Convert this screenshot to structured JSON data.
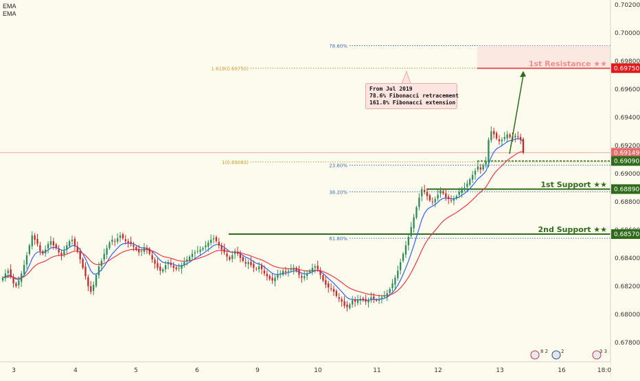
{
  "indicators": [
    "EMA",
    "EMA"
  ],
  "colors": {
    "background": "#fdfbee",
    "candle_up": "#2e8b57",
    "candle_down": "#c62828",
    "ema_fast": "#2962ff",
    "ema_slow": "#f23645",
    "fib": "#d19a2a",
    "retr": "#3b6fb6",
    "support": "#2e6b1a",
    "resistance": "#e11b1b",
    "current_price": "#e26d6d"
  },
  "callout": {
    "lines": [
      "From Jul 2019",
      "78.6% Fibonacci retracement",
      "161.8% Fibonacci extension"
    ]
  },
  "chart_data": {
    "type": "candlestick",
    "x_ticks": [
      "3",
      "4",
      "5",
      "6",
      "9",
      "10",
      "11",
      "12",
      "13",
      "16",
      "18:0"
    ],
    "y_ticks": [
      "0.70200",
      "0.70000",
      "0.69800",
      "0.69600",
      "0.69400",
      "0.69200",
      "0.69000",
      "0.68800",
      "0.68600",
      "0.68400",
      "0.68200",
      "0.68000",
      "0.67800"
    ],
    "ylim": [
      0.6775,
      0.7022
    ],
    "levels": [
      {
        "kind": "resistance",
        "label": "1st Resistance ★★",
        "price_label": "0.69750",
        "price": 0.6975
      },
      {
        "kind": "current",
        "price_label": "0.69149",
        "price": 0.69149
      },
      {
        "kind": "dashed",
        "price_label": "0.69090",
        "price": 0.6909
      },
      {
        "kind": "support",
        "label": "1st Support ★★",
        "price_label": "0.68890",
        "price": 0.6889
      },
      {
        "kind": "support",
        "label": "2nd Support ★★",
        "price_label": "0.68570",
        "price": 0.6857
      }
    ],
    "fib_levels": [
      {
        "label": "78.60%",
        "price": 0.6991,
        "color": "retr"
      },
      {
        "label": "1.618(0.69750)",
        "price": 0.6975,
        "color": "fib"
      },
      {
        "label": "1(0.69083)",
        "price": 0.69083,
        "color": "fib"
      },
      {
        "label": "23.60%",
        "price": 0.6906,
        "color": "retr"
      },
      {
        "label": "38.20%",
        "price": 0.6887,
        "color": "retr"
      },
      {
        "label": "61.80%",
        "price": 0.6854,
        "color": "retr"
      }
    ],
    "closes": [
      0.6826,
      0.6829,
      0.6831,
      0.6827,
      0.6822,
      0.682,
      0.6824,
      0.6829,
      0.6835,
      0.6842,
      0.6849,
      0.6856,
      0.6853,
      0.685,
      0.6845,
      0.6843,
      0.6846,
      0.685,
      0.6852,
      0.6849,
      0.6847,
      0.6844,
      0.6842,
      0.6845,
      0.6849,
      0.6852,
      0.6853,
      0.6849,
      0.6845,
      0.6839,
      0.6833,
      0.6827,
      0.682,
      0.6816,
      0.6821,
      0.6828,
      0.6834,
      0.6838,
      0.6843,
      0.6847,
      0.6851,
      0.6853,
      0.6852,
      0.6854,
      0.6856,
      0.6854,
      0.6852,
      0.6851,
      0.685,
      0.6848,
      0.6846,
      0.6844,
      0.6845,
      0.6847,
      0.6846,
      0.6843,
      0.6839,
      0.6836,
      0.6833,
      0.6831,
      0.6832,
      0.6835,
      0.6837,
      0.6835,
      0.6833,
      0.6832,
      0.6833,
      0.6835,
      0.6837,
      0.6839,
      0.6841,
      0.6843,
      0.6844,
      0.6845,
      0.6846,
      0.6847,
      0.6849,
      0.6851,
      0.6853,
      0.6854,
      0.6852,
      0.6849,
      0.6846,
      0.6844,
      0.6841,
      0.6839,
      0.6842,
      0.6845,
      0.6843,
      0.684,
      0.6838,
      0.6836,
      0.6837,
      0.6835,
      0.6833,
      0.6832,
      0.6834,
      0.6832,
      0.6829,
      0.6827,
      0.6825,
      0.6824,
      0.6826,
      0.6828,
      0.6829,
      0.6831,
      0.683,
      0.6831,
      0.6832,
      0.6833,
      0.6831,
      0.6828,
      0.6826,
      0.6827,
      0.6829,
      0.6831,
      0.6833,
      0.6834,
      0.6832,
      0.6828,
      0.6824,
      0.6821,
      0.6819,
      0.6818,
      0.6816,
      0.6813,
      0.6811,
      0.6809,
      0.6806,
      0.6805,
      0.6807,
      0.681,
      0.6809,
      0.681,
      0.6811,
      0.681,
      0.6809,
      0.681,
      0.6812,
      0.6811,
      0.681,
      0.6811,
      0.6812,
      0.6813,
      0.6815,
      0.6818,
      0.6822,
      0.6826,
      0.6831,
      0.6837,
      0.6843,
      0.6849,
      0.6855,
      0.6862,
      0.6869,
      0.6876,
      0.6883,
      0.6889,
      0.6887,
      0.6884,
      0.6881,
      0.688,
      0.6882,
      0.6885,
      0.6888,
      0.6886,
      0.6883,
      0.6882,
      0.6881,
      0.6882,
      0.6884,
      0.6887,
      0.6889,
      0.689,
      0.6893,
      0.6896,
      0.6899,
      0.6902,
      0.6905,
      0.6903,
      0.6906,
      0.6909,
      0.6924,
      0.693,
      0.6928,
      0.6925,
      0.6923,
      0.6924,
      0.6926,
      0.6928,
      0.6926,
      0.6925,
      0.6927,
      0.6926,
      0.6924,
      0.6915
    ]
  }
}
